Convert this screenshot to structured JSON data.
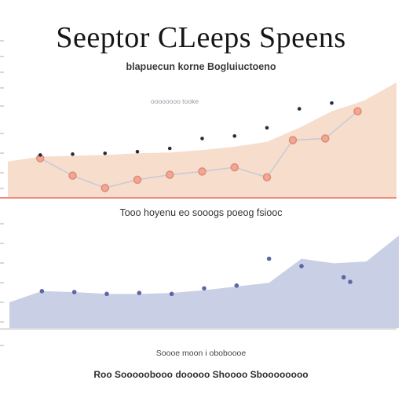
{
  "header": {
    "title": "Seeptor CLeeps Speens",
    "subtitle": "blapuecun korne Bogluiuctoeno"
  },
  "labels": {
    "top_legend": "oooooooo tooke",
    "mid_label": "Tooo hoyenu eo sooogs poeog fsiooc",
    "bottom_legend": "Soooe moon  i oboboooe",
    "footer": "Roo Sooooobooo dooooo Shoooo Sboooooooo"
  },
  "colors": {
    "top_area": "#f6d9c6",
    "top_baseline": "#ee8a80",
    "top_line": "#c7c9d8",
    "top_marker_fill": "#f0a893",
    "top_marker_stroke": "#e08a78",
    "top_dot": "#2b2b3a",
    "bottom_area": "#c9d0e6",
    "bottom_dot": "#5b67a6",
    "bottom_axis": "#d3d3d3"
  },
  "chart_data": [
    {
      "type": "line",
      "title": "",
      "area_x": [
        0,
        1,
        2,
        3,
        4,
        5,
        6,
        7,
        8,
        9,
        10,
        11,
        12
      ],
      "area_y": [
        44,
        50,
        51,
        52,
        54,
        55,
        58,
        62,
        68,
        85,
        105,
        118,
        140
      ],
      "series": [
        {
          "x": [
            1,
            2,
            3,
            4,
            5,
            6,
            7,
            8,
            8.8,
            9.8,
            10.8
          ],
          "y": [
            48,
            27,
            12,
            22,
            28,
            32,
            37,
            25,
            70,
            72,
            105
          ],
          "marker": "ring"
        },
        {
          "x": [
            1,
            2,
            3,
            4,
            5,
            6,
            7,
            8,
            9,
            10
          ],
          "y": [
            52,
            53,
            54,
            56,
            60,
            72,
            75,
            85,
            108,
            115
          ],
          "marker": "dot"
        }
      ],
      "ylim": [
        0,
        140
      ]
    },
    {
      "type": "area",
      "title": "",
      "x": [
        0,
        1,
        2,
        3,
        4,
        5,
        6,
        7,
        8,
        9,
        10,
        11,
        12
      ],
      "y": [
        28,
        40,
        39,
        37,
        37,
        38,
        41,
        45,
        49,
        75,
        70,
        72,
        100
      ],
      "points": {
        "x": [
          1,
          2,
          3,
          4,
          5,
          6,
          7,
          8,
          9,
          10.3,
          10.5
        ],
        "y": [
          40,
          39,
          37,
          38,
          37,
          43,
          46,
          75,
          67,
          55,
          50
        ]
      },
      "ylim": [
        0,
        100
      ]
    }
  ]
}
